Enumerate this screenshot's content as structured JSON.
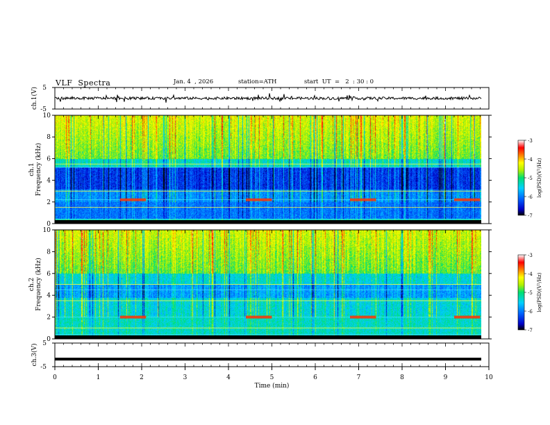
{
  "header": {
    "title": "VLF  Spectra",
    "date": "Jan. 4  , 2026",
    "station": "station=ATH",
    "start": "start  UT  =   2  : 30 : 0"
  },
  "colorbar": {
    "label": "log(PSD)(V²/Hz)",
    "ticks": [
      -3,
      -4,
      -5,
      -6,
      -7
    ],
    "range": [
      -7,
      -3
    ],
    "colors": [
      "#000000",
      "#0000c8",
      "#0064ff",
      "#00d0ff",
      "#00e070",
      "#b0f000",
      "#ffff00",
      "#ff8000",
      "#ff0000",
      "#ffffff"
    ]
  },
  "chart_data": [
    {
      "type": "line",
      "panel": "ch1-waveform",
      "ylabel": "ch.1(V)",
      "ylim": [
        -5,
        5
      ],
      "yticks": [
        "5",
        "-5"
      ],
      "xlim": [
        0,
        10
      ],
      "approx_mean": 0,
      "approx_amplitude": 1.2
    },
    {
      "type": "heatmap",
      "panel": "ch1-spectrogram",
      "ylabel_channel": "ch.1",
      "ylabel": "Frequency  (kHz)",
      "ylim": [
        0,
        10
      ],
      "yticks": [
        "0",
        "2",
        "4",
        "6",
        "8",
        "10"
      ],
      "xlim": [
        0,
        10
      ],
      "color_scale": "log(PSD)",
      "features": {
        "quiet_band_khz": [
          3.2,
          5.0
        ],
        "horizontal_lines_khz": [
          0.4,
          1.5,
          2.2,
          3.0,
          5.2,
          5.5
        ],
        "bursts_min": [
          [
            1.5,
            2.1
          ],
          [
            4.4,
            5.0
          ],
          [
            6.8,
            7.4
          ],
          [
            9.2,
            9.8
          ]
        ]
      }
    },
    {
      "type": "heatmap",
      "panel": "ch2-spectrogram",
      "ylabel_channel": "ch.2",
      "ylabel": "Frequency  (kHz)",
      "ylim": [
        0,
        10
      ],
      "yticks": [
        "0",
        "2",
        "4",
        "6",
        "8",
        "10"
      ],
      "xlim": [
        0,
        10
      ],
      "color_scale": "log(PSD)",
      "features": {
        "horizontal_lines_khz": [
          0.4,
          1.0,
          2.0,
          3.5,
          4.5,
          5.0
        ],
        "bursts_min": [
          [
            1.5,
            2.1
          ],
          [
            4.4,
            5.0
          ],
          [
            6.8,
            7.4
          ],
          [
            9.2,
            9.8
          ]
        ]
      }
    },
    {
      "type": "line",
      "panel": "ch3-waveform",
      "ylabel": "ch.3(V)",
      "ylim": [
        -5,
        5
      ],
      "yticks": [
        "5",
        "-5"
      ],
      "xlim": [
        0,
        10
      ],
      "approx_mean": -1.8,
      "approx_amplitude": 0.1
    },
    {
      "type": "axis",
      "panel": "time-axis",
      "xlabel": "Time  (min)",
      "xticks": [
        "0",
        "1",
        "2",
        "3",
        "4",
        "5",
        "6",
        "7",
        "8",
        "9",
        "10"
      ],
      "xlim": [
        0,
        10
      ]
    }
  ]
}
